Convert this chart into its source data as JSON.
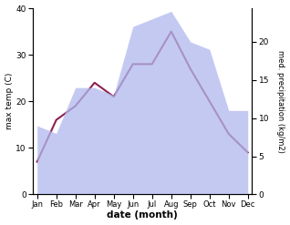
{
  "months": [
    "Jan",
    "Feb",
    "Mar",
    "Apr",
    "May",
    "Jun",
    "Jul",
    "Aug",
    "Sep",
    "Oct",
    "Nov",
    "Dec"
  ],
  "month_positions": [
    0,
    1,
    2,
    3,
    4,
    5,
    6,
    7,
    8,
    9,
    10,
    11
  ],
  "max_temp": [
    7,
    16,
    19,
    24,
    21,
    28,
    28,
    35,
    27,
    20,
    13,
    9
  ],
  "precipitation": [
    9,
    8,
    14,
    14,
    13,
    22,
    23,
    24,
    20,
    19,
    11,
    11
  ],
  "temp_ylim": [
    0,
    40
  ],
  "precip_ylim": [
    0,
    24.4
  ],
  "precip_right_ticks": [
    0,
    5,
    10,
    15,
    20
  ],
  "temp_yticks": [
    0,
    10,
    20,
    30,
    40
  ],
  "fill_color": "#b0b8ee",
  "fill_alpha": 0.75,
  "line_color": "#8b2252",
  "xlabel": "date (month)",
  "ylabel_left": "max temp (C)",
  "ylabel_right": "med. precipitation (kg/m2)",
  "background_color": "#ffffff",
  "line_width": 1.5
}
